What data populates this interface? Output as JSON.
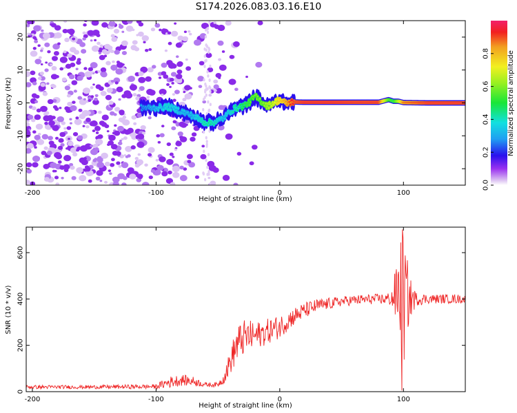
{
  "title": "S174.2026.083.03.16.E10",
  "chart_data": [
    {
      "type": "heatmap",
      "title": "S174.2026.083.03.16.E10",
      "xlabel": "Height of straight line (km)",
      "ylabel": "Frequency (Hz)",
      "xlim": [
        -205,
        150
      ],
      "ylim": [
        -25,
        25
      ],
      "xticks": [
        -200,
        -100,
        0,
        100
      ],
      "yticks": [
        -20,
        -10,
        0,
        10,
        20
      ],
      "colorbar": {
        "label": "Normalized spectral amplitude",
        "range": [
          0,
          1
        ],
        "ticks": [
          "0.0",
          "0.2",
          "0.4",
          "0.6",
          "0.8"
        ],
        "colormap": "hsv-rainbow"
      },
      "signal_trace": {
        "x": [
          -110,
          -100,
          -90,
          -80,
          -70,
          -60,
          -55,
          -50,
          -45,
          -40,
          -35,
          -30,
          -25,
          -20,
          -15,
          -10,
          -5,
          0,
          5,
          10,
          20,
          40,
          60,
          80,
          88,
          92,
          96,
          100,
          120,
          150
        ],
        "freq": [
          -1.5,
          -1.5,
          -1.2,
          -2.5,
          -4.0,
          -6.0,
          -6.0,
          -5.5,
          -4.5,
          -2.5,
          -1.5,
          -1.0,
          0.0,
          2.0,
          0.5,
          -1.0,
          0.0,
          1.0,
          -0.2,
          0.3,
          0.2,
          0.2,
          0.2,
          0.2,
          1.0,
          0.5,
          0.5,
          0.1,
          0.0,
          0.0
        ],
        "amplitude": [
          0.3,
          0.35,
          0.4,
          0.35,
          0.35,
          0.45,
          0.45,
          0.4,
          0.35,
          0.4,
          0.45,
          0.5,
          0.55,
          0.6,
          0.6,
          0.65,
          0.7,
          0.8,
          0.85,
          0.95,
          0.98,
          0.98,
          0.97,
          0.97,
          0.6,
          0.55,
          0.7,
          0.9,
          0.97,
          0.97
        ]
      },
      "noise_region_x": [
        -205,
        -40
      ]
    },
    {
      "type": "line",
      "xlabel": "Height of straight line (km)",
      "ylabel": "SNR (10 * v/v)",
      "xlim": [
        -205,
        150
      ],
      "ylim": [
        0,
        710
      ],
      "xticks": [
        -200,
        -100,
        0,
        100
      ],
      "yticks": [
        0,
        200,
        400,
        600
      ],
      "series": [
        {
          "name": "SNR",
          "color": "#ee2222",
          "x": [
            -205,
            -150,
            -100,
            -90,
            -80,
            -70,
            -60,
            -50,
            -45,
            -40,
            -35,
            -30,
            -25,
            -20,
            -10,
            0,
            10,
            20,
            30,
            40,
            50,
            60,
            70,
            80,
            90,
            95,
            98,
            100,
            102,
            105,
            110,
            120,
            130,
            140,
            150
          ],
          "y": [
            20,
            20,
            22,
            40,
            50,
            45,
            30,
            30,
            60,
            130,
            200,
            230,
            240,
            240,
            260,
            280,
            320,
            350,
            370,
            380,
            390,
            395,
            398,
            400,
            400,
            420,
            450,
            380,
            420,
            400,
            400,
            400,
            400,
            400,
            400
          ],
          "noise_amplitude": [
            8,
            8,
            10,
            25,
            25,
            20,
            10,
            10,
            25,
            55,
            80,
            80,
            70,
            60,
            55,
            50,
            40,
            35,
            30,
            25,
            22,
            22,
            22,
            22,
            30,
            150,
            260,
            300,
            200,
            100,
            30,
            20,
            20,
            20,
            20
          ]
        }
      ]
    }
  ]
}
